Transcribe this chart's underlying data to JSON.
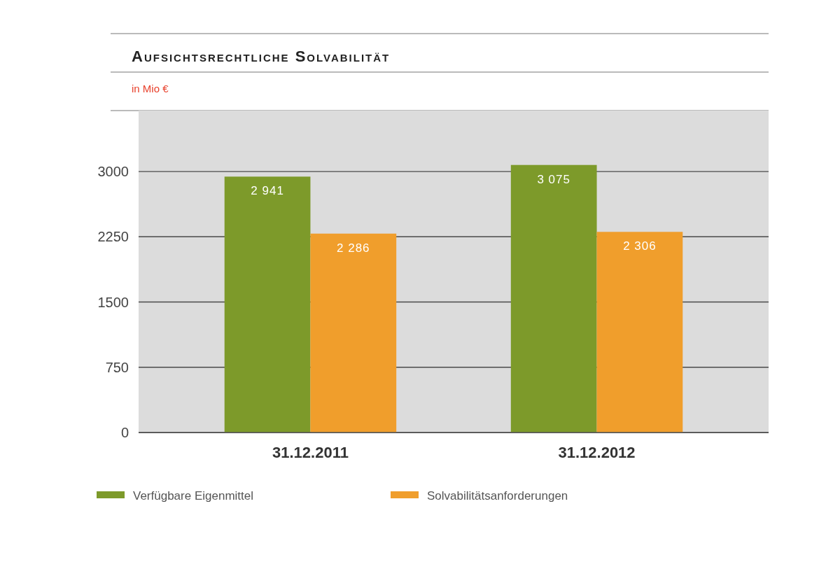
{
  "chart_data": {
    "type": "bar",
    "title": "Aufsichtsrechtliche Solvabilität",
    "subtitle": "in Mio €",
    "categories": [
      "31.12.2011",
      "31.12.2012"
    ],
    "series": [
      {
        "name": "Verfügbare Eigenmittel",
        "color": "#7d9a2a",
        "values": [
          2941,
          3075
        ],
        "value_labels": [
          "2 941",
          "3 075"
        ]
      },
      {
        "name": "Solvabilitätsanforderungen",
        "color": "#f09e2c",
        "values": [
          2286,
          2306
        ],
        "value_labels": [
          "2 286",
          "2 306"
        ]
      }
    ],
    "ylim": [
      0,
      3700
    ],
    "yticks": [
      0,
      750,
      1500,
      2250,
      3000
    ],
    "grid": "y",
    "legend": "bottom"
  }
}
